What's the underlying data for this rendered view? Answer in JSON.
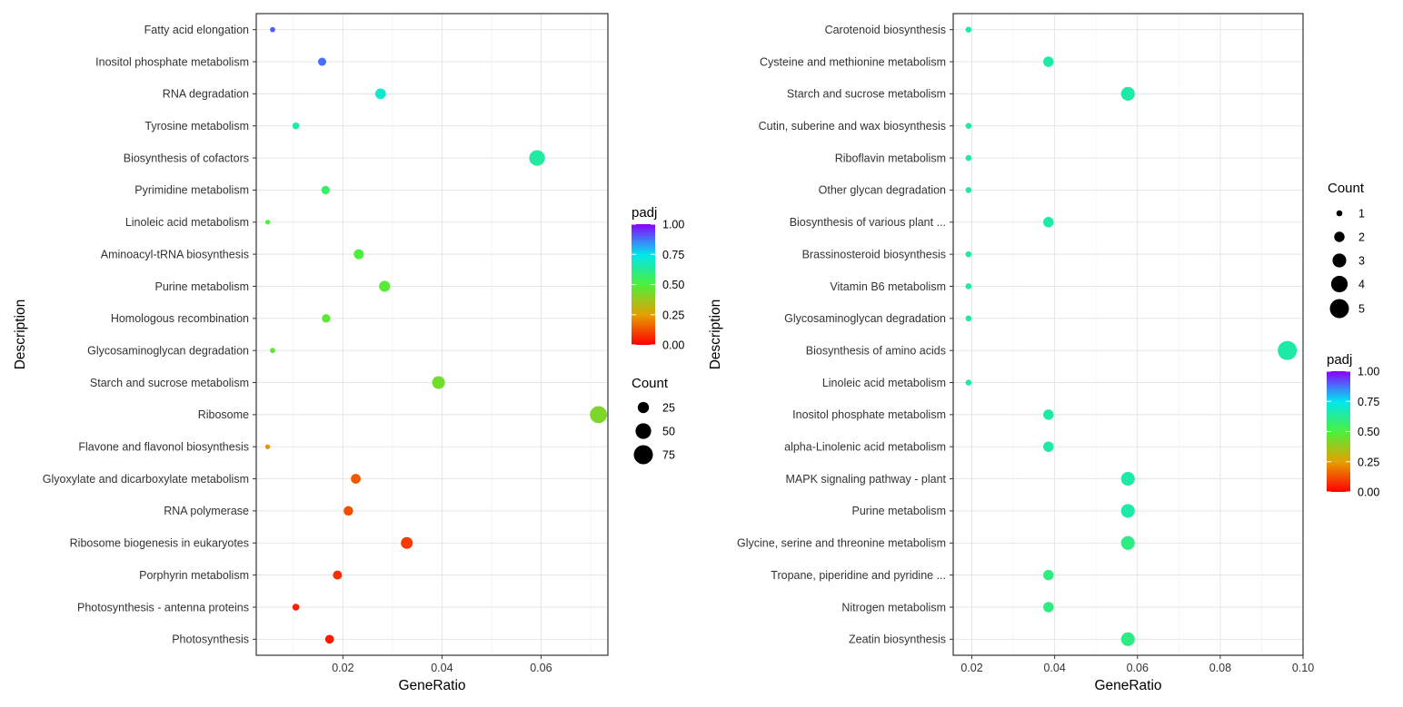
{
  "chart_data": [
    {
      "type": "scatter",
      "subtype": "bubble",
      "xlabel": "GeneRatio",
      "ylabel": "Description",
      "xlim": [
        0.0025,
        0.0735
      ],
      "xticks": [
        0.02,
        0.04,
        0.06
      ],
      "xtick_labels": [
        "0.02",
        "0.04",
        "0.06"
      ],
      "grid": true,
      "color_var": "padj",
      "colorbar": {
        "title": "padj",
        "ticks": [
          1.0,
          0.75,
          0.5,
          0.25,
          0.0
        ],
        "tick_labels": [
          "1.00",
          "0.75",
          "0.50",
          "0.25",
          "0.00"
        ]
      },
      "size_legend": {
        "title": "Count",
        "values": [
          25,
          50,
          75
        ],
        "labels": [
          "25",
          "50",
          "75"
        ]
      },
      "legend_position": "right",
      "points": [
        {
          "term": "Fatty acid elongation",
          "generatio": 0.0058,
          "count": 5,
          "padj": 0.9
        },
        {
          "term": "Inositol phosphate metabolism",
          "generatio": 0.0158,
          "count": 13,
          "padj": 0.88
        },
        {
          "term": "RNA degradation",
          "generatio": 0.0276,
          "count": 23,
          "padj": 0.7
        },
        {
          "term": "Tyrosine metabolism",
          "generatio": 0.0105,
          "count": 9,
          "padj": 0.65
        },
        {
          "term": "Biosynthesis of cofactors",
          "generatio": 0.0592,
          "count": 50,
          "padj": 0.64
        },
        {
          "term": "Pyrimidine metabolism",
          "generatio": 0.0165,
          "count": 14,
          "padj": 0.56
        },
        {
          "term": "Linoleic acid metabolism",
          "generatio": 0.0048,
          "count": 4,
          "padj": 0.5
        },
        {
          "term": "Aminoacyl-tRNA biosynthesis",
          "generatio": 0.0232,
          "count": 20,
          "padj": 0.5
        },
        {
          "term": "Purine metabolism",
          "generatio": 0.0284,
          "count": 24,
          "padj": 0.48
        },
        {
          "term": "Homologous recombination",
          "generatio": 0.0166,
          "count": 14,
          "padj": 0.47
        },
        {
          "term": "Glycosaminoglycan degradation",
          "generatio": 0.0058,
          "count": 5,
          "padj": 0.47
        },
        {
          "term": "Starch and sucrose metabolism",
          "generatio": 0.0393,
          "count": 33,
          "padj": 0.44
        },
        {
          "term": "Ribosome",
          "generatio": 0.0716,
          "count": 60,
          "padj": 0.42
        },
        {
          "term": "Flavone and flavonol biosynthesis",
          "generatio": 0.0048,
          "count": 4,
          "padj": 0.23
        },
        {
          "term": "Glyoxylate and dicarboxylate metabolism",
          "generatio": 0.0226,
          "count": 19,
          "padj": 0.14
        },
        {
          "term": "RNA polymerase",
          "generatio": 0.0211,
          "count": 18,
          "padj": 0.12
        },
        {
          "term": "Ribosome biogenesis in eukaryotes",
          "generatio": 0.0329,
          "count": 28,
          "padj": 0.09
        },
        {
          "term": "Porphyrin metabolism",
          "generatio": 0.0189,
          "count": 16,
          "padj": 0.07
        },
        {
          "term": "Photosynthesis - antenna proteins",
          "generatio": 0.0105,
          "count": 9,
          "padj": 0.05
        },
        {
          "term": "Photosynthesis",
          "generatio": 0.0173,
          "count": 15,
          "padj": 0.04
        }
      ]
    },
    {
      "type": "scatter",
      "subtype": "bubble",
      "xlabel": "GeneRatio",
      "ylabel": "Description",
      "xlim": [
        0.0155,
        0.1
      ],
      "xticks": [
        0.02,
        0.04,
        0.06,
        0.08,
        0.1
      ],
      "xtick_labels": [
        "0.02",
        "0.04",
        "0.06",
        "0.08",
        "0.10"
      ],
      "grid": true,
      "color_var": "padj",
      "colorbar": {
        "title": "padj",
        "ticks": [
          1.0,
          0.75,
          0.5,
          0.25,
          0.0
        ],
        "tick_labels": [
          "1.00",
          "0.75",
          "0.50",
          "0.25",
          "0.00"
        ]
      },
      "size_legend": {
        "title": "Count",
        "values": [
          1,
          2,
          3,
          4,
          5
        ],
        "labels": [
          "1",
          "2",
          "3",
          "4",
          "5"
        ]
      },
      "legend_position": "right",
      "points": [
        {
          "term": "Carotenoid biosynthesis",
          "generatio": 0.0192,
          "count": 1,
          "padj": 0.65
        },
        {
          "term": "Cysteine and methionine metabolism",
          "generatio": 0.0385,
          "count": 2,
          "padj": 0.65
        },
        {
          "term": "Starch and sucrose metabolism",
          "generatio": 0.0577,
          "count": 3,
          "padj": 0.65
        },
        {
          "term": "Cutin, suberine and wax biosynthesis",
          "generatio": 0.0192,
          "count": 1,
          "padj": 0.65
        },
        {
          "term": "Riboflavin metabolism",
          "generatio": 0.0192,
          "count": 1,
          "padj": 0.65
        },
        {
          "term": "Other glycan degradation",
          "generatio": 0.0192,
          "count": 1,
          "padj": 0.65
        },
        {
          "term": "Biosynthesis of various plant ...",
          "generatio": 0.0385,
          "count": 2,
          "padj": 0.65
        },
        {
          "term": "Brassinosteroid biosynthesis",
          "generatio": 0.0192,
          "count": 1,
          "padj": 0.65
        },
        {
          "term": "Vitamin B6 metabolism",
          "generatio": 0.0192,
          "count": 1,
          "padj": 0.65
        },
        {
          "term": "Glycosaminoglycan degradation",
          "generatio": 0.0192,
          "count": 1,
          "padj": 0.65
        },
        {
          "term": "Biosynthesis of amino acids",
          "generatio": 0.0962,
          "count": 5,
          "padj": 0.65
        },
        {
          "term": "Linoleic acid metabolism",
          "generatio": 0.0192,
          "count": 1,
          "padj": 0.65
        },
        {
          "term": "Inositol phosphate metabolism",
          "generatio": 0.0385,
          "count": 2,
          "padj": 0.65
        },
        {
          "term": "alpha-Linolenic acid metabolism",
          "generatio": 0.0385,
          "count": 2,
          "padj": 0.65
        },
        {
          "term": "MAPK signaling pathway - plant",
          "generatio": 0.0577,
          "count": 3,
          "padj": 0.65
        },
        {
          "term": "Purine metabolism",
          "generatio": 0.0577,
          "count": 3,
          "padj": 0.65
        },
        {
          "term": "Glycine, serine and threonine metabolism",
          "generatio": 0.0577,
          "count": 3,
          "padj": 0.6
        },
        {
          "term": "Tropane, piperidine and pyridine ...",
          "generatio": 0.0385,
          "count": 2,
          "padj": 0.6
        },
        {
          "term": "Nitrogen metabolism",
          "generatio": 0.0385,
          "count": 2,
          "padj": 0.6
        },
        {
          "term": "Zeatin biosynthesis",
          "generatio": 0.0577,
          "count": 3,
          "padj": 0.6
        }
      ]
    }
  ]
}
